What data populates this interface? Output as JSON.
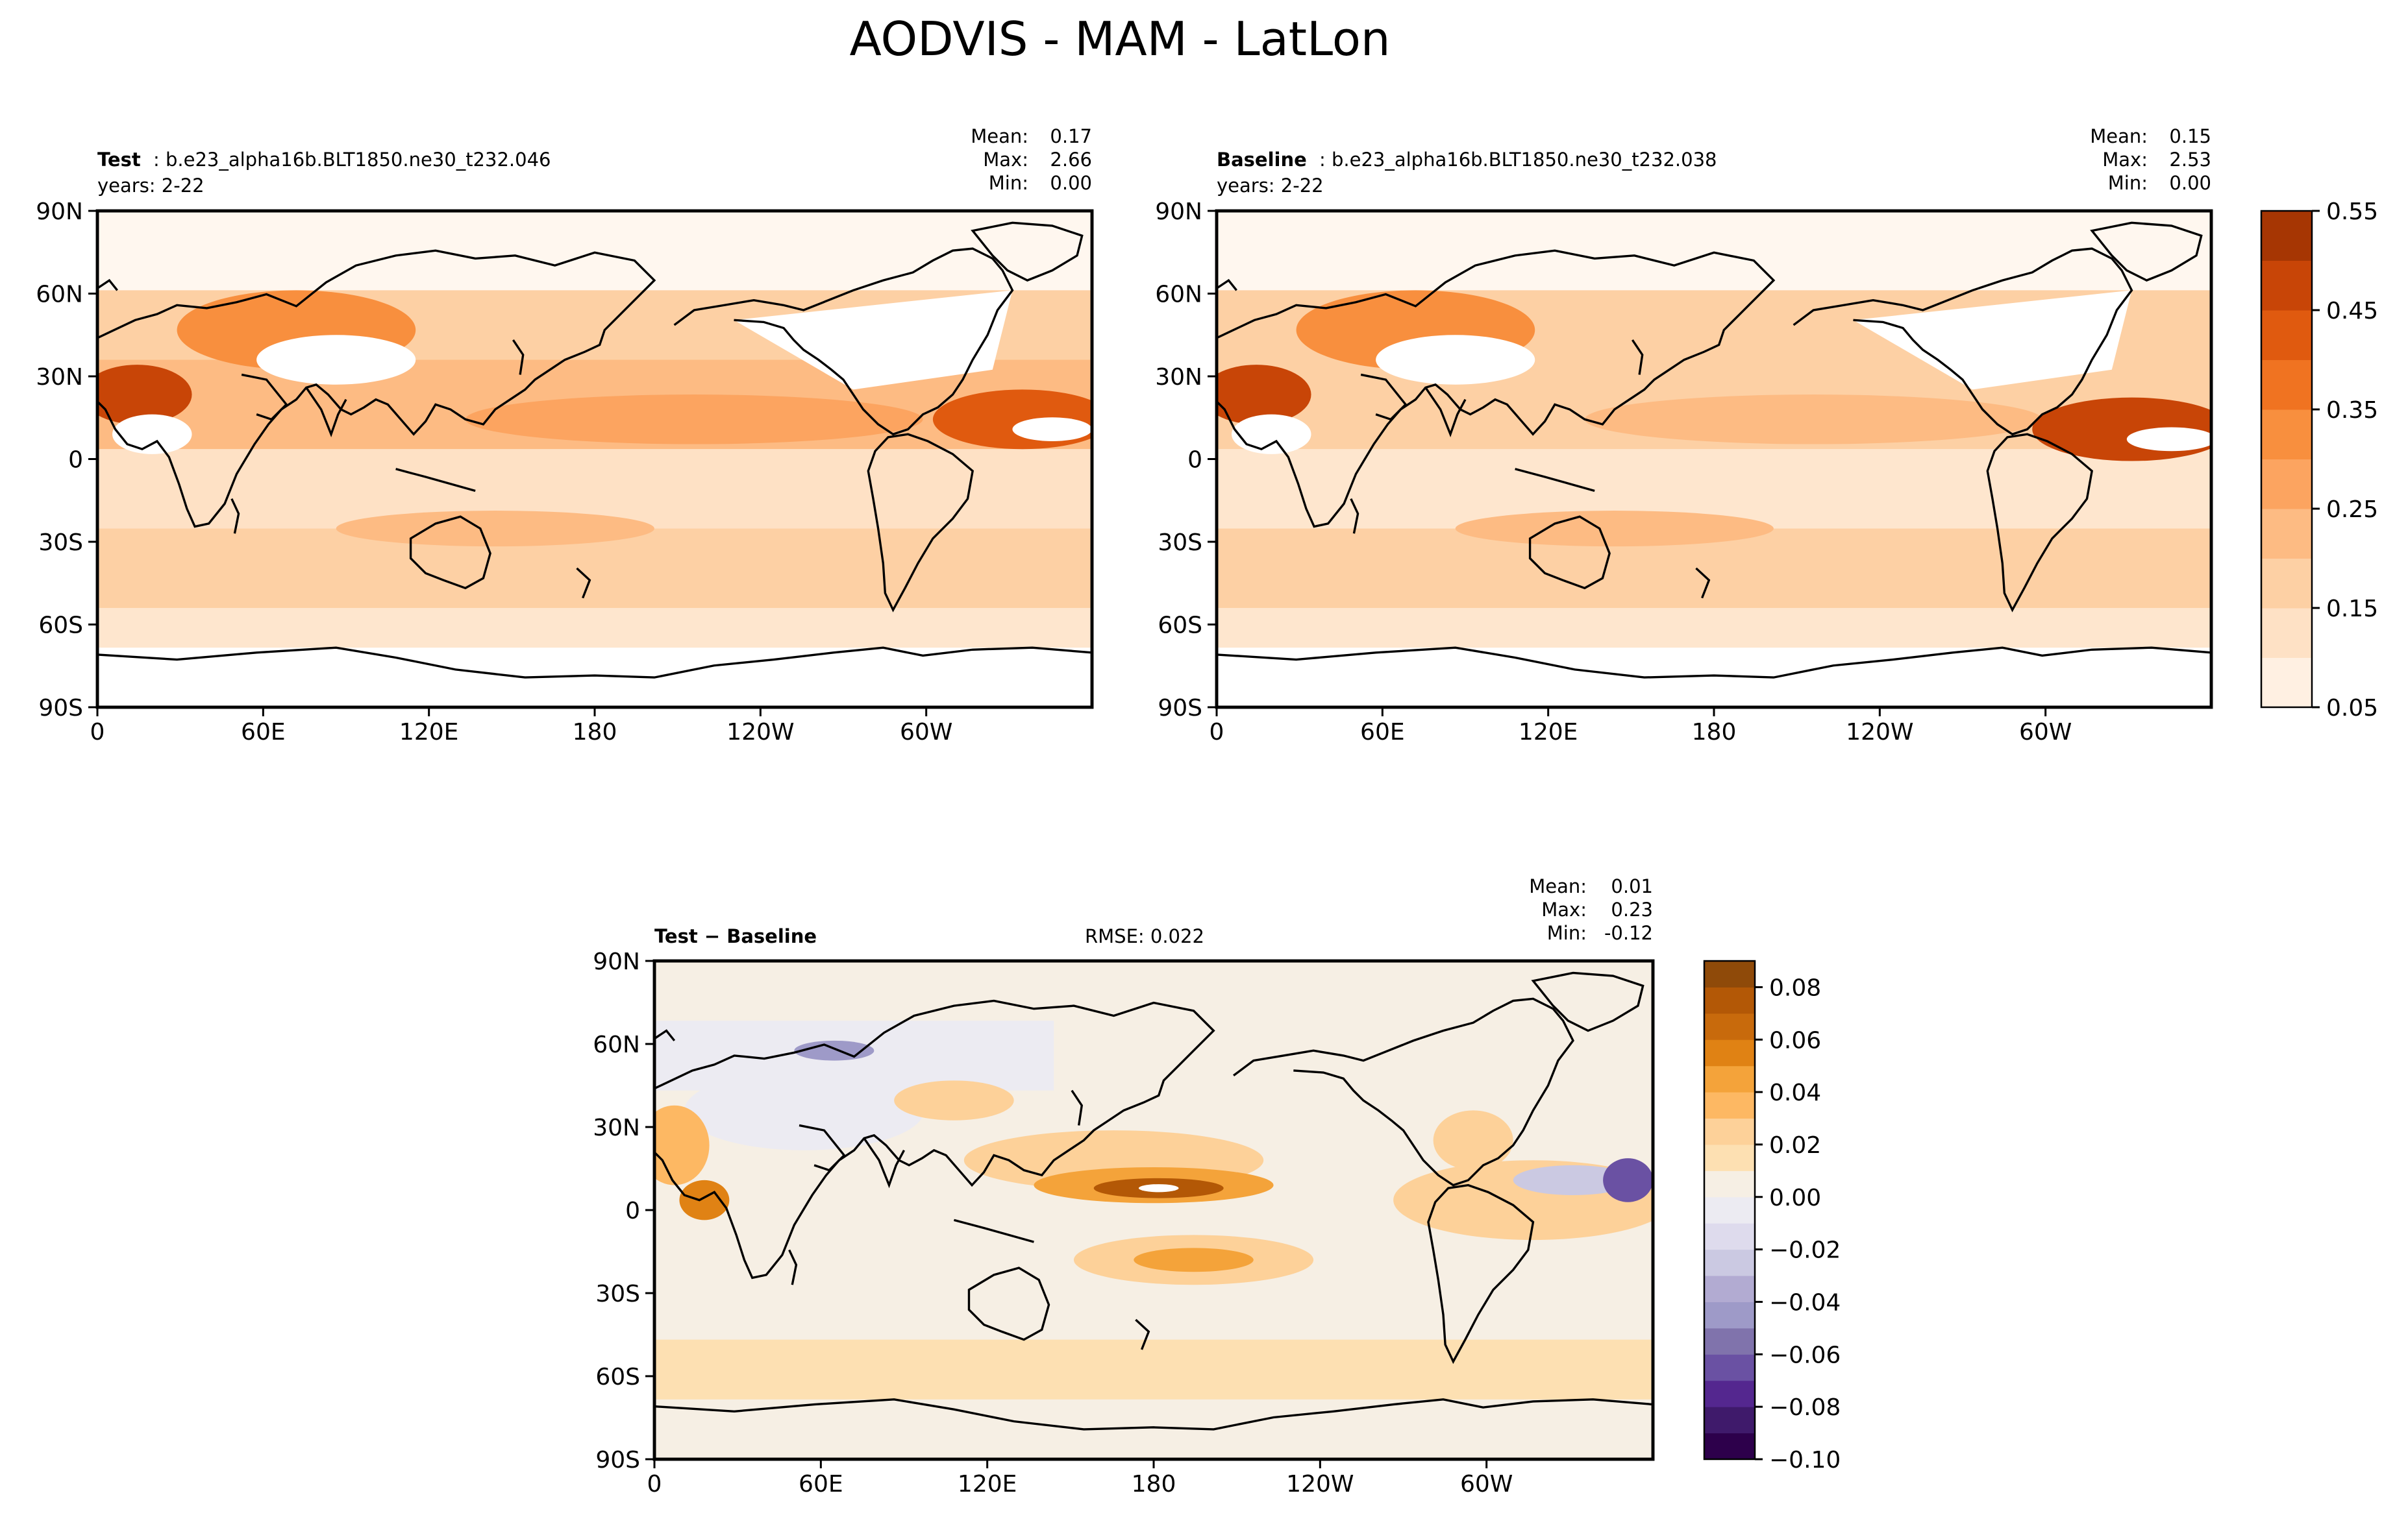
{
  "title": "AODVIS - MAM - LatLon",
  "panels": [
    {
      "id": "test",
      "label_bold": "Test",
      "label_rest": ": b.e23_alpha16b.BLT1850.ne30_t232.046",
      "years": "years: 2-22",
      "stats": {
        "mean_label": "Mean:",
        "mean": "0.17",
        "max_label": "Max:",
        "max": "2.66",
        "min_label": "Min:",
        "min": "0.00"
      }
    },
    {
      "id": "baseline",
      "label_bold": "Baseline",
      "label_rest": ": b.e23_alpha16b.BLT1850.ne30_t232.038",
      "years": "years: 2-22",
      "stats": {
        "mean_label": "Mean:",
        "mean": "0.15",
        "max_label": "Max:",
        "max": "2.53",
        "min_label": "Min:",
        "min": "0.00"
      }
    },
    {
      "id": "diff",
      "label_bold": "Test − Baseline",
      "rmse": "RMSE: 0.022",
      "stats": {
        "mean_label": "Mean:",
        "mean": "0.01",
        "max_label": "Max:",
        "max": "0.23",
        "min_label": "Min:",
        "min": "-0.12"
      }
    }
  ],
  "chart_data": [
    {
      "type": "heatmap",
      "title": "Test",
      "variable": "AODVIS",
      "xticks": [
        "0",
        "60E",
        "120E",
        "180",
        "120W",
        "60W"
      ],
      "yticks": [
        "90N",
        "60N",
        "30N",
        "0",
        "30S",
        "60S",
        "90S"
      ],
      "xlim": [
        0,
        360
      ],
      "ylim": [
        -90,
        90
      ],
      "stats": {
        "mean": 0.17,
        "max": 2.66,
        "min": 0.0
      },
      "colormap": "Oranges",
      "levels": [
        0.05,
        0.1,
        0.15,
        0.2,
        0.25,
        0.3,
        0.35,
        0.4,
        0.45,
        0.5,
        0.55
      ]
    },
    {
      "type": "heatmap",
      "title": "Baseline",
      "variable": "AODVIS",
      "xticks": [
        "0",
        "60E",
        "120E",
        "180",
        "120W",
        "60W"
      ],
      "yticks": [
        "90N",
        "60N",
        "30N",
        "0",
        "30S",
        "60S",
        "90S"
      ],
      "xlim": [
        0,
        360
      ],
      "ylim": [
        -90,
        90
      ],
      "stats": {
        "mean": 0.15,
        "max": 2.53,
        "min": 0.0
      },
      "colormap": "Oranges",
      "levels": [
        0.05,
        0.1,
        0.15,
        0.2,
        0.25,
        0.3,
        0.35,
        0.4,
        0.45,
        0.5,
        0.55
      ]
    },
    {
      "type": "heatmap",
      "title": "Test − Baseline",
      "variable": "AODVIS",
      "xticks": [
        "0",
        "60E",
        "120E",
        "180",
        "120W",
        "60W"
      ],
      "yticks": [
        "90N",
        "60N",
        "30N",
        "0",
        "30S",
        "60S",
        "90S"
      ],
      "xlim": [
        0,
        360
      ],
      "ylim": [
        -90,
        90
      ],
      "rmse": 0.022,
      "stats": {
        "mean": 0.01,
        "max": 0.23,
        "min": -0.12
      },
      "colormap": "PuOr_r",
      "levels": [
        -0.1,
        -0.09,
        -0.08,
        -0.07,
        -0.06,
        -0.05,
        -0.04,
        -0.03,
        -0.02,
        -0.01,
        0.0,
        0.01,
        0.02,
        0.03,
        0.04,
        0.05,
        0.06,
        0.07,
        0.08,
        0.09
      ]
    }
  ],
  "colorbars": [
    {
      "id": "main",
      "ticks": [
        "0.05",
        "0.15",
        "0.25",
        "0.35",
        "0.45",
        "0.55"
      ],
      "colors": [
        "#fff0e2",
        "#fee1c5",
        "#fdd0a4",
        "#fdbb83",
        "#fca460",
        "#f88f3e",
        "#f07321",
        "#e05a0f",
        "#c84507",
        "#a63603"
      ]
    },
    {
      "id": "diff",
      "ticks": [
        "0.08",
        "0.06",
        "0.04",
        "0.02",
        "0.00",
        "−0.02",
        "−0.04",
        "−0.06",
        "−0.08",
        "−0.10"
      ],
      "colors": [
        "#2d004b",
        "#3f1a6b",
        "#54278f",
        "#6a51a3",
        "#8073ac",
        "#9e9ac8",
        "#b2abd2",
        "#cbc9e2",
        "#dedbed",
        "#ecebf2",
        "#f6efe4",
        "#fde0b2",
        "#fdd199",
        "#fdb863",
        "#f4a33a",
        "#e08214",
        "#c86a0c",
        "#b35806",
        "#8f4a09"
      ]
    }
  ]
}
